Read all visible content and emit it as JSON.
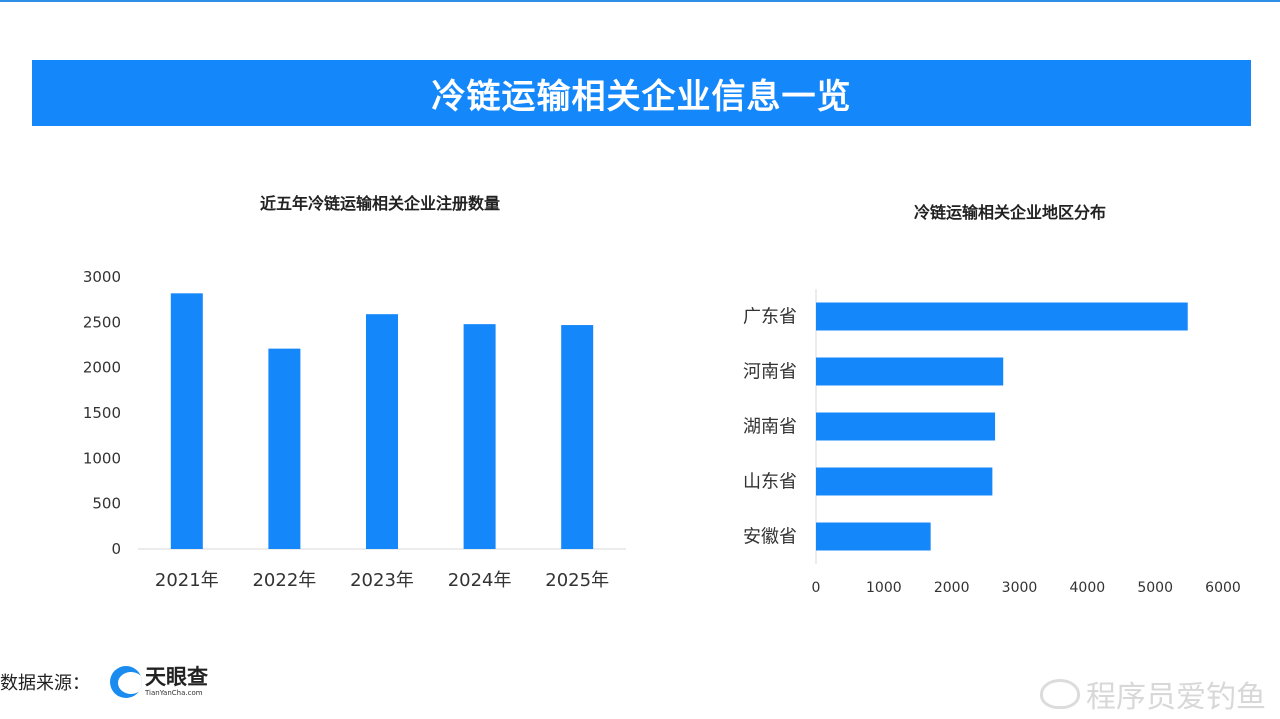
{
  "banner": {
    "title": "冷链运输相关企业信息一览"
  },
  "source": {
    "label": "数据来源：",
    "logo_cn": "天眼查",
    "logo_en": "TianYanCha.com"
  },
  "watermark": {
    "text": "程序员爱钓鱼"
  },
  "colors": {
    "banner": "#1487fb",
    "bar": "#1487fb",
    "axis": "#d9d9d9"
  },
  "chart_data": [
    {
      "type": "bar",
      "title": "近五年冷链运输相关企业注册数量",
      "categories": [
        "2021年",
        "2022年",
        "2023年",
        "2024年",
        "2025年"
      ],
      "values": [
        2820,
        2210,
        2590,
        2480,
        2470
      ],
      "ylim": [
        0,
        3000
      ],
      "yticks": [
        0,
        500,
        1000,
        1500,
        2000,
        2500,
        3000
      ],
      "grid": false,
      "legend": "none"
    },
    {
      "type": "bar",
      "orientation": "horizontal",
      "title": "冷链运输相关企业地区分布",
      "categories": [
        "广东省",
        "河南省",
        "湖南省",
        "山东省",
        "安徽省"
      ],
      "values": [
        5480,
        2760,
        2640,
        2600,
        1690
      ],
      "xlim": [
        0,
        6000
      ],
      "xticks": [
        0,
        1000,
        2000,
        3000,
        4000,
        5000,
        6000
      ],
      "grid": false,
      "legend": "none"
    }
  ]
}
